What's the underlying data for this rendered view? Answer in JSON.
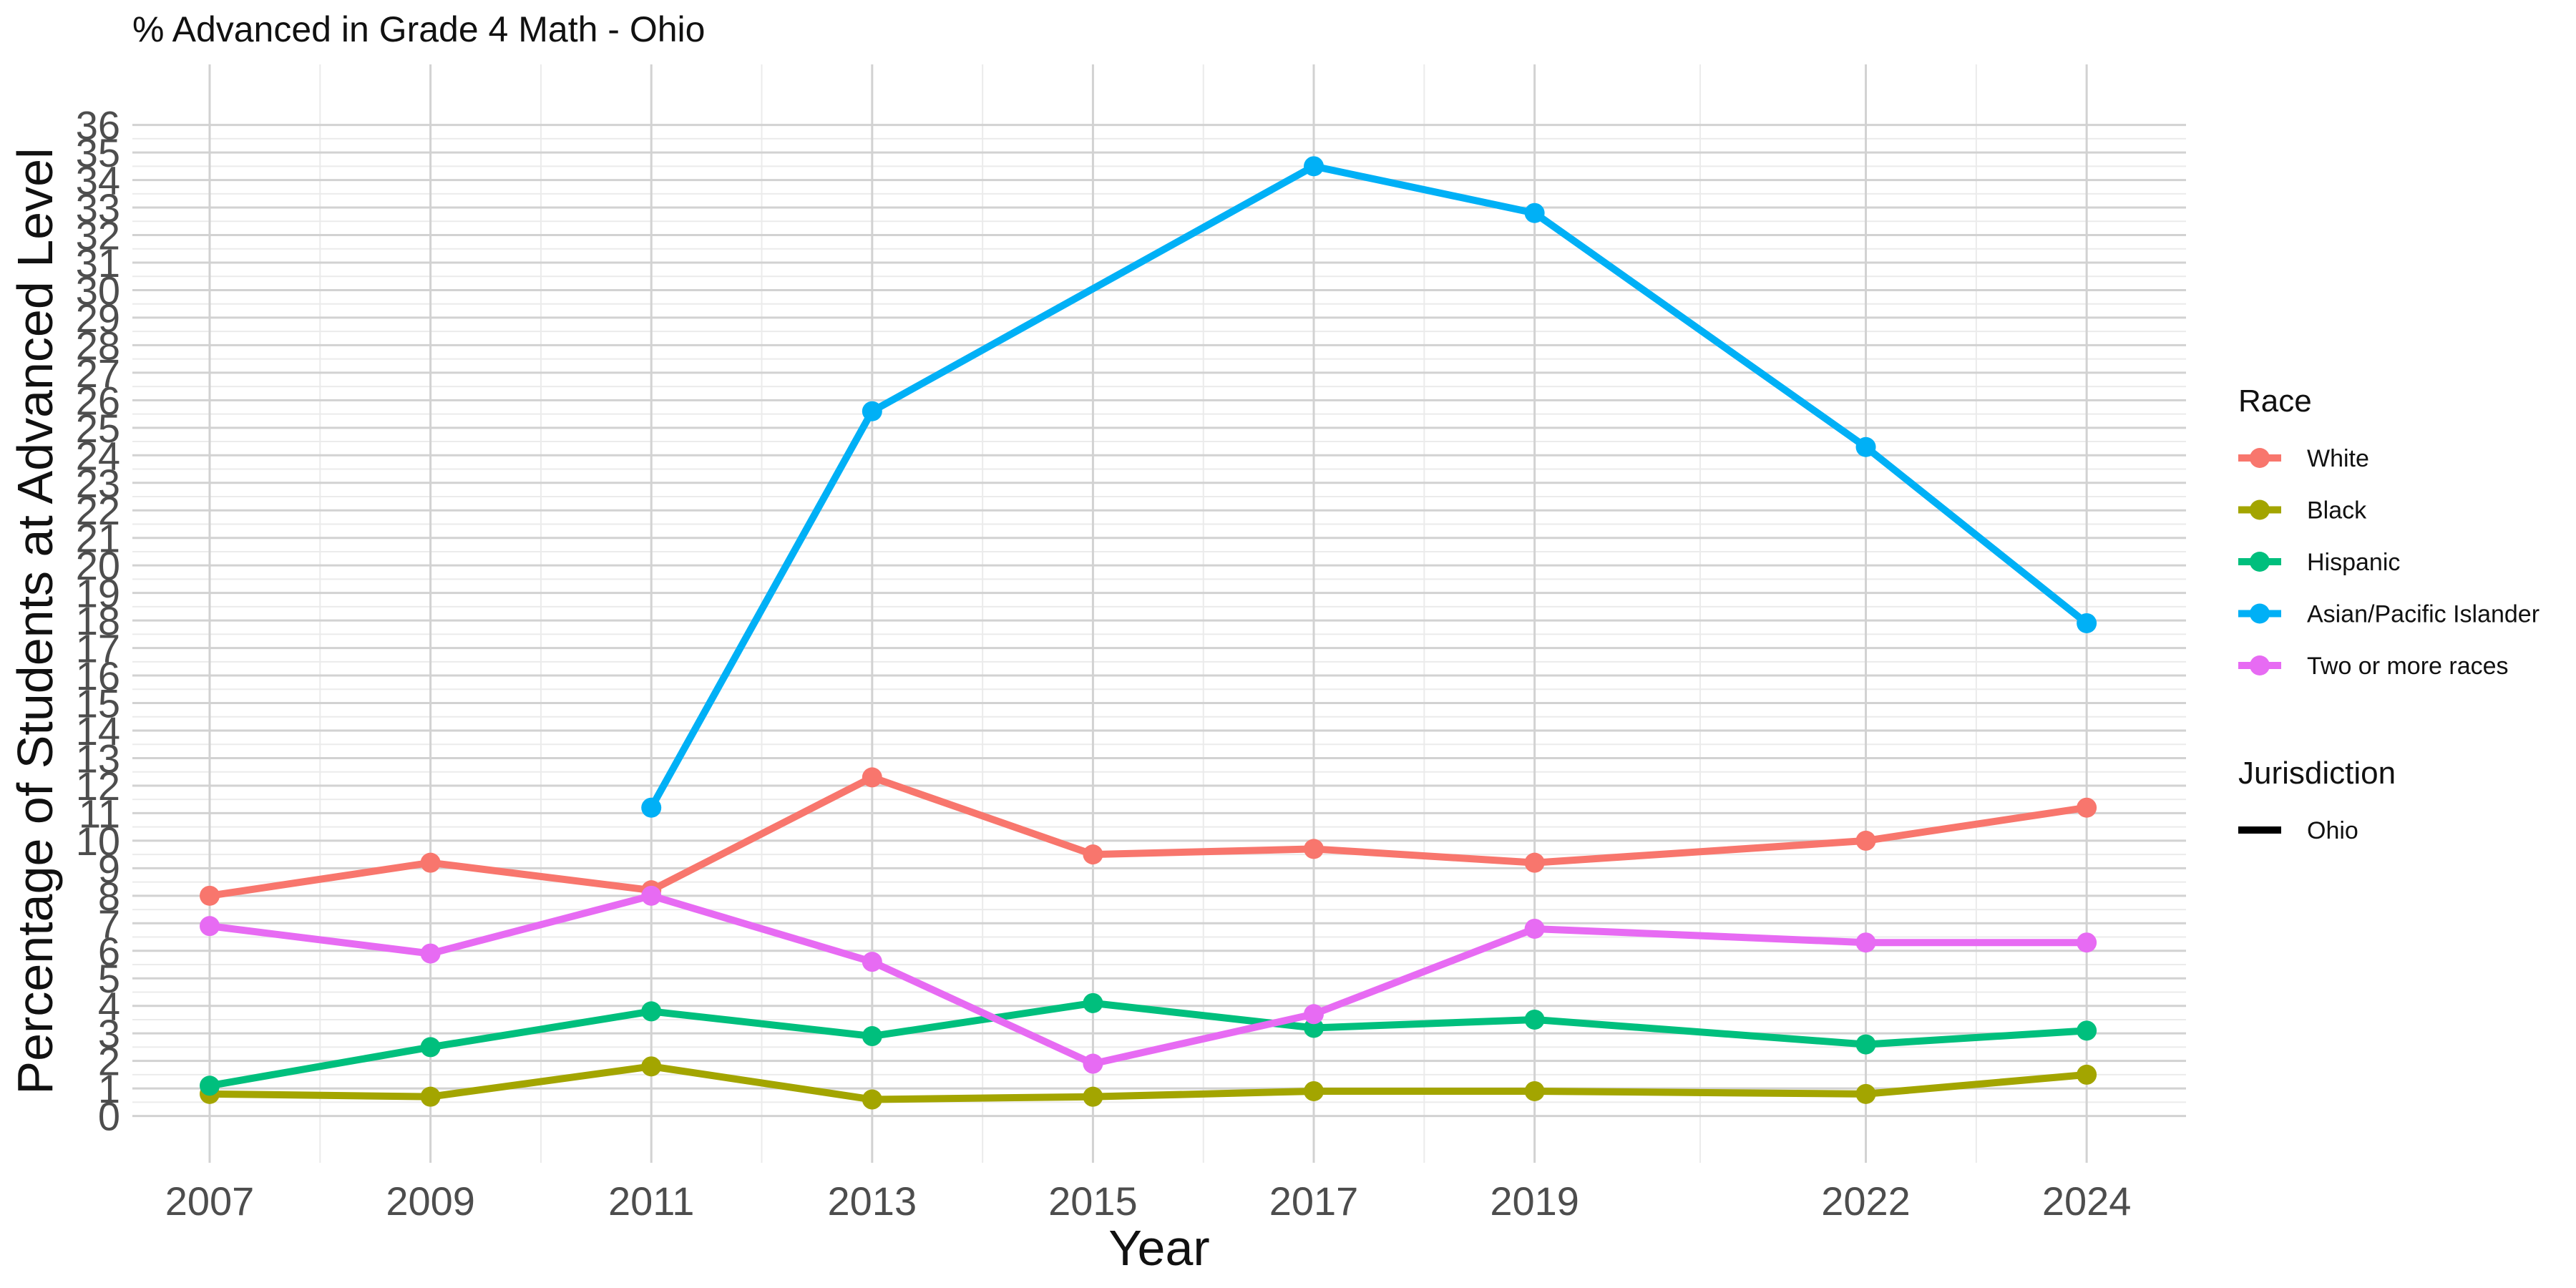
{
  "chart_data": {
    "type": "line",
    "title": "% Advanced in Grade 4 Math - Ohio",
    "xlabel": "Year",
    "ylabel": "Percentage of Students at Advanced Level",
    "x": [
      2007,
      2009,
      2011,
      2013,
      2015,
      2017,
      2019,
      2022,
      2024
    ],
    "x_ticks": [
      "2007",
      "2009",
      "2011",
      "2013",
      "2015",
      "2017",
      "2019",
      "2022",
      "2024"
    ],
    "xlim": [
      2006.3,
      2024.9
    ],
    "ylim": [
      -1.7,
      38.2
    ],
    "y_ticks": [
      "0",
      "1",
      "2",
      "3",
      "4",
      "5",
      "6",
      "7",
      "8",
      "9",
      "10",
      "11",
      "12",
      "13",
      "14",
      "15",
      "16",
      "17",
      "18",
      "19",
      "20",
      "21",
      "22",
      "23",
      "24",
      "25",
      "26",
      "27",
      "28",
      "29",
      "30",
      "31",
      "32",
      "33",
      "34",
      "35",
      "36"
    ],
    "grid": true,
    "legend_position": "right",
    "series": [
      {
        "name": "White",
        "color": "#F8766D",
        "values": [
          8.0,
          9.2,
          8.2,
          12.3,
          9.5,
          9.7,
          9.2,
          10.0,
          11.2
        ]
      },
      {
        "name": "Black",
        "color": "#A3A500",
        "values": [
          0.8,
          0.7,
          1.8,
          0.6,
          0.7,
          0.9,
          0.9,
          0.8,
          1.5
        ]
      },
      {
        "name": "Hispanic",
        "color": "#00BF7D",
        "values": [
          1.1,
          2.5,
          3.8,
          2.9,
          4.1,
          3.2,
          3.5,
          2.6,
          3.1
        ]
      },
      {
        "name": "Asian/Pacific Islander",
        "color": "#00B0F6",
        "values": [
          null,
          null,
          11.2,
          25.6,
          null,
          34.5,
          32.8,
          24.3,
          17.9
        ]
      },
      {
        "name": "Two or more races",
        "color": "#E76BF3",
        "values": [
          6.9,
          5.9,
          8.0,
          5.6,
          1.9,
          3.7,
          6.8,
          6.3,
          6.3
        ]
      }
    ],
    "legends": [
      {
        "title": "Race",
        "entries": [
          "White",
          "Black",
          "Hispanic",
          "Asian/Pacific Islander",
          "Two or more races"
        ]
      },
      {
        "title": "Jurisdiction",
        "entries": [
          "Ohio"
        ]
      }
    ]
  }
}
